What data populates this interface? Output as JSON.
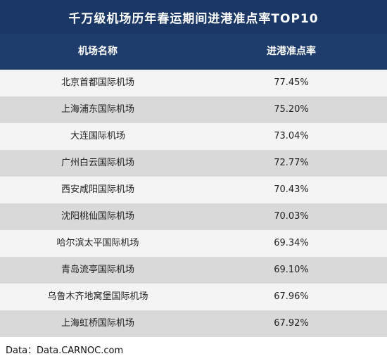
{
  "chart_data": {
    "type": "table",
    "title": "千万级机场历年春运期间进港准点率TOP10",
    "columns": [
      "机场名称",
      "进港准点率"
    ],
    "rows": [
      {
        "airport": "北京首都国际机场",
        "rate": "77.45%"
      },
      {
        "airport": "上海浦东国际机场",
        "rate": "75.20%"
      },
      {
        "airport": "大连国际机场",
        "rate": "73.04%"
      },
      {
        "airport": "广州白云国际机场",
        "rate": "72.77%"
      },
      {
        "airport": "西安咸阳国际机场",
        "rate": "70.43%"
      },
      {
        "airport": "沈阳桃仙国际机场",
        "rate": "70.03%"
      },
      {
        "airport": "哈尔滨太平国际机场",
        "rate": "69.34%"
      },
      {
        "airport": "青岛流亭国际机场",
        "rate": "69.10%"
      },
      {
        "airport": "乌鲁木齐地窝堡国际机场",
        "rate": "67.96%"
      },
      {
        "airport": "上海虹桥国际机场",
        "rate": "67.92%"
      }
    ],
    "source": "Data：Data.CARNOC.com"
  },
  "colors": {
    "title_bg": "#1a3766",
    "header_bg": "#1f3d6c",
    "row_light": "#f4f4f4",
    "row_dark": "#d9d9d9"
  }
}
